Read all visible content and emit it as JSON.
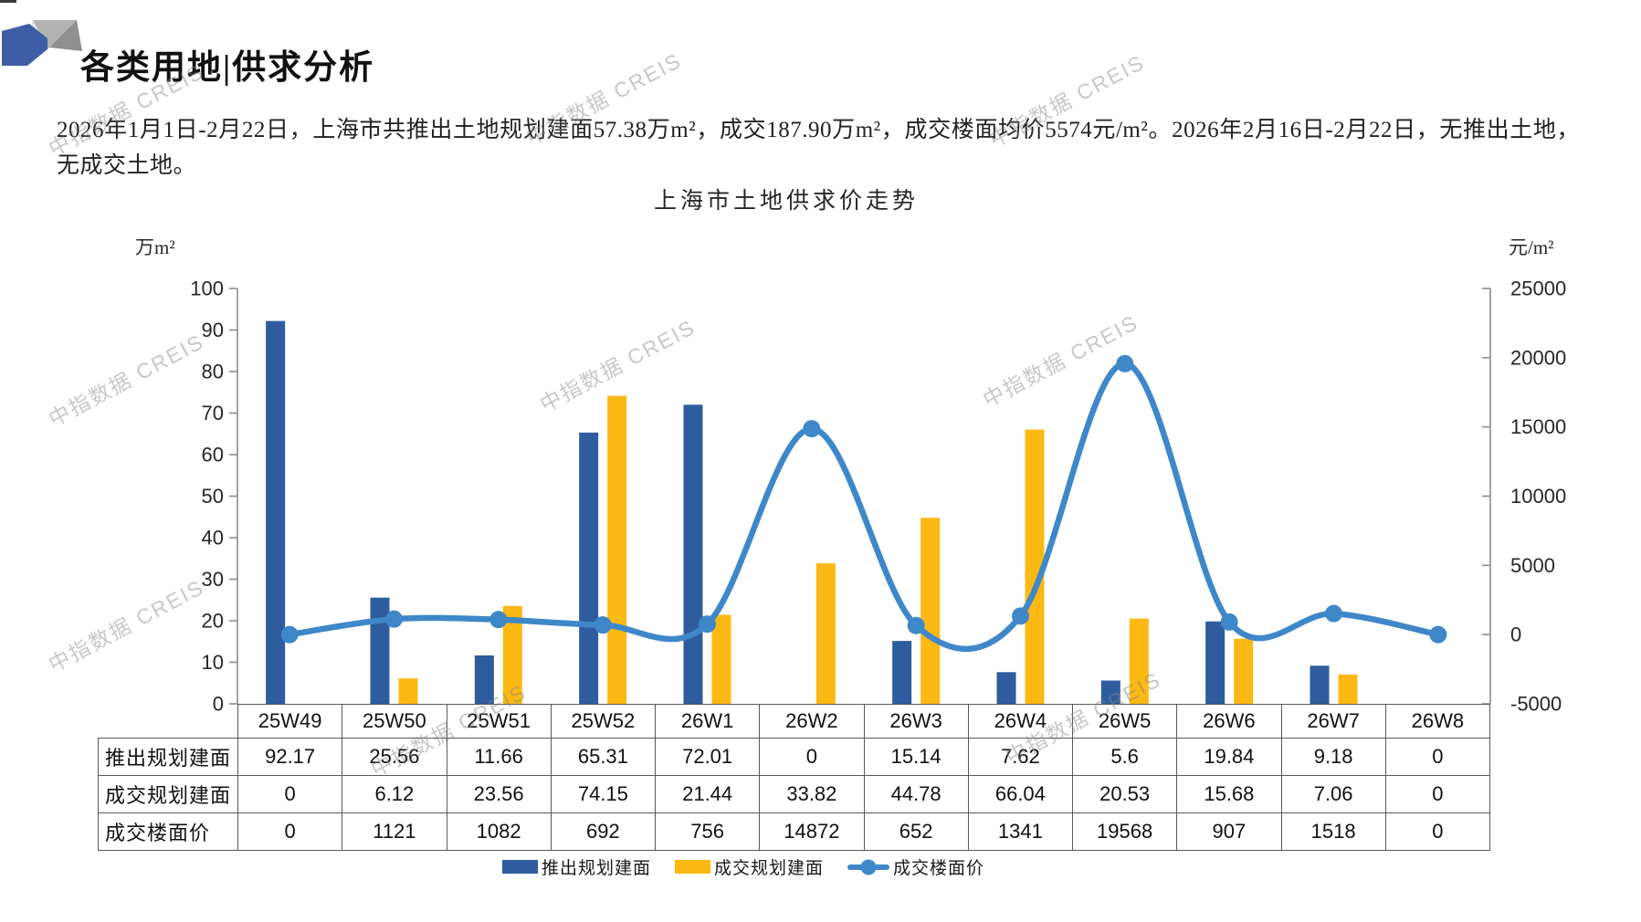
{
  "page": {
    "header_title": "各类用地|供求分析",
    "description": "2026年1月1日-2月22日，上海市共推出土地规划建面57.38万m²，成交187.90万m²，成交楼面均价5574元/m²。2026年2月16日-2月22日，无推出土地，无成交土地。",
    "watermark_text": "中指数据 CREIS"
  },
  "chart_data": {
    "type": "bar",
    "subtype": "combo-bar-line",
    "title": "上海市土地供求价走势",
    "categories": [
      "25W49",
      "25W50",
      "25W51",
      "25W52",
      "26W1",
      "26W2",
      "26W3",
      "26W4",
      "26W5",
      "26W6",
      "26W7",
      "26W8"
    ],
    "series": [
      {
        "name": "推出规划建面",
        "type": "bar",
        "axis": "left",
        "color": "#2E5C9E",
        "values": [
          92.17,
          25.56,
          11.66,
          65.31,
          72.01,
          0,
          15.14,
          7.62,
          5.6,
          19.84,
          9.18,
          0
        ]
      },
      {
        "name": "成交规划建面",
        "type": "bar",
        "axis": "left",
        "color": "#FCB813",
        "values": [
          0,
          6.12,
          23.56,
          74.15,
          21.44,
          33.82,
          44.78,
          66.04,
          20.53,
          15.68,
          7.06,
          0
        ]
      },
      {
        "name": "成交楼面价",
        "type": "line",
        "axis": "right",
        "color": "#3E87C9",
        "values": [
          0,
          1121,
          1082,
          692,
          756,
          14872,
          652,
          1341,
          19568,
          907,
          1518,
          0
        ]
      }
    ],
    "left_axis": {
      "unit": "万m²",
      "min": 0,
      "max": 100,
      "step": 10
    },
    "right_axis": {
      "unit": "元/m²",
      "min": -5000,
      "max": 25000,
      "step": 5000
    },
    "grid": false,
    "legend_position": "bottom"
  },
  "table": {
    "row_labels": [
      "推出规划建面",
      "成交规划建面",
      "成交楼面价"
    ],
    "columns": [
      "25W49",
      "25W50",
      "25W51",
      "25W52",
      "26W1",
      "26W2",
      "26W3",
      "26W4",
      "26W5",
      "26W6",
      "26W7",
      "26W8"
    ],
    "rows": [
      [
        "92.17",
        "25.56",
        "11.66",
        "65.31",
        "72.01",
        "0",
        "15.14",
        "7.62",
        "5.6",
        "19.84",
        "9.18",
        "0"
      ],
      [
        "0",
        "6.12",
        "23.56",
        "74.15",
        "21.44",
        "33.82",
        "44.78",
        "66.04",
        "20.53",
        "15.68",
        "7.06",
        "0"
      ],
      [
        "0",
        "1121",
        "1082",
        "692",
        "756",
        "14872",
        "652",
        "1341",
        "19568",
        "907",
        "1518",
        "0"
      ]
    ]
  }
}
